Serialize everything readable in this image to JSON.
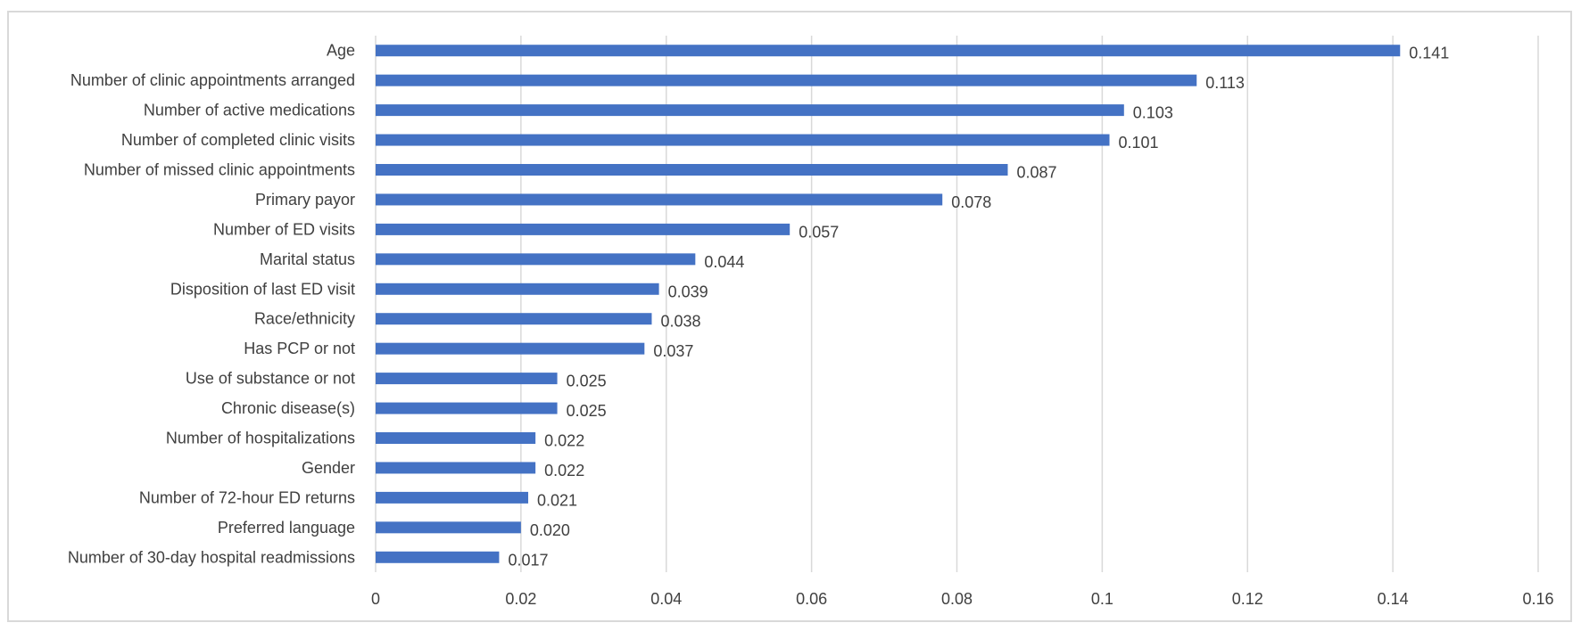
{
  "chart_data": {
    "type": "bar",
    "orientation": "horizontal",
    "title": "",
    "xlabel": "",
    "ylabel": "",
    "xlim": [
      0,
      0.16
    ],
    "x_ticks": [
      "0",
      "0.02",
      "0.04",
      "0.06",
      "0.08",
      "0.1",
      "0.12",
      "0.14",
      "0.16"
    ],
    "x_tick_values": [
      0,
      0.02,
      0.04,
      0.06,
      0.08,
      0.1,
      0.12,
      0.14,
      0.16
    ],
    "grid": "vertical",
    "bar_color": "#4472c4",
    "categories": [
      "Age",
      "Number of clinic appointments arranged",
      "Number of active medications",
      "Number of completed clinic visits",
      "Number of missed clinic appointments",
      "Primary payor",
      "Number of ED visits",
      "Marital status",
      "Disposition of last ED visit",
      "Race/ethnicity",
      "Has PCP or not",
      "Use of substance or not",
      "Chronic disease(s)",
      "Number of hospitalizations",
      "Gender",
      "Number of 72-hour ED returns",
      "Preferred language",
      "Number of 30-day hospital readmissions"
    ],
    "values": [
      0.141,
      0.113,
      0.103,
      0.101,
      0.087,
      0.078,
      0.057,
      0.044,
      0.039,
      0.038,
      0.037,
      0.025,
      0.025,
      0.022,
      0.022,
      0.021,
      0.02,
      0.017
    ],
    "data_labels": [
      "0.141",
      "0.113",
      "0.103",
      "0.101",
      "0.087",
      "0.078",
      "0.057",
      "0.044",
      "0.039",
      "0.038",
      "0.037",
      "0.025",
      "0.025",
      "0.022",
      "0.022",
      "0.021",
      "0.020",
      "0.017"
    ]
  }
}
